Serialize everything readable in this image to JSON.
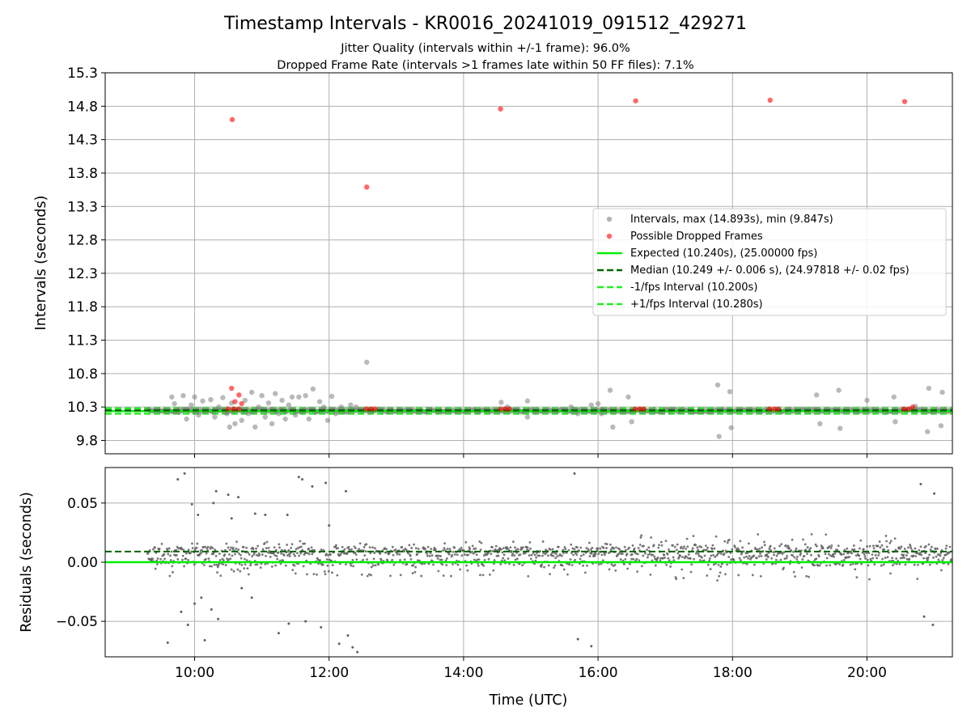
{
  "chart_data": [
    {
      "type": "scatter",
      "title": "Timestamp Intervals - KR0016_20241019_091512_429271",
      "subtitle_lines": [
        "Jitter Quality (intervals within +/-1 frame): 96.0%",
        "Dropped Frame Rate (intervals >1 frames late within 50 FF files): 7.1%"
      ],
      "xlabel": "",
      "ylabel": "Intervals (seconds)",
      "xlim_hours": [
        8.67,
        21.27
      ],
      "ylim": [
        9.6,
        15.3
      ],
      "yticks": [
        9.8,
        10.3,
        10.8,
        11.3,
        11.8,
        12.3,
        12.8,
        13.3,
        13.8,
        14.3,
        14.8,
        15.3
      ],
      "ytick_labels": [
        "9.8",
        "10.3",
        "10.8",
        "11.3",
        "11.8",
        "12.3",
        "12.8",
        "13.3",
        "13.8",
        "14.3",
        "14.8",
        "15.3"
      ],
      "grid": true,
      "legend_position": "center-right",
      "colors": {
        "intervals": "#808080",
        "dropped": "#ff0000",
        "expected": "#00ee00",
        "median": "#006400",
        "bounds": "#22ee22"
      },
      "series": [
        {
          "name": "Intervals, max (14.893s), min (9.847s)",
          "kind": "scatter",
          "points": [
            [
              9.66,
              10.45
            ],
            [
              9.7,
              10.35
            ],
            [
              9.76,
              10.22
            ],
            [
              9.83,
              10.47
            ],
            [
              9.88,
              10.12
            ],
            [
              9.95,
              10.33
            ],
            [
              10.0,
              10.45
            ],
            [
              10.06,
              10.18
            ],
            [
              10.12,
              10.39
            ],
            [
              10.18,
              10.25
            ],
            [
              10.24,
              10.41
            ],
            [
              10.3,
              10.15
            ],
            [
              10.36,
              10.3
            ],
            [
              10.42,
              10.44
            ],
            [
              10.48,
              10.2
            ],
            [
              10.52,
              10.0
            ],
            [
              10.55,
              10.36
            ],
            [
              10.6,
              10.05
            ],
            [
              10.7,
              10.1
            ],
            [
              10.75,
              10.4
            ],
            [
              10.8,
              10.2
            ],
            [
              10.85,
              10.52
            ],
            [
              10.9,
              10.0
            ],
            [
              10.95,
              10.3
            ],
            [
              11.0,
              10.47
            ],
            [
              11.05,
              10.15
            ],
            [
              11.1,
              10.36
            ],
            [
              11.15,
              10.05
            ],
            [
              11.2,
              10.5
            ],
            [
              11.25,
              10.2
            ],
            [
              11.3,
              10.4
            ],
            [
              11.35,
              10.12
            ],
            [
              11.4,
              10.33
            ],
            [
              11.45,
              10.45
            ],
            [
              11.5,
              10.18
            ],
            [
              11.55,
              10.45
            ],
            [
              11.6,
              10.25
            ],
            [
              11.65,
              10.47
            ],
            [
              11.7,
              10.12
            ],
            [
              11.76,
              10.57
            ],
            [
              11.8,
              10.22
            ],
            [
              11.86,
              10.38
            ],
            [
              11.92,
              10.3
            ],
            [
              11.98,
              10.1
            ],
            [
              12.04,
              10.46
            ],
            [
              12.1,
              10.2
            ],
            [
              12.18,
              10.3
            ],
            [
              12.26,
              10.22
            ],
            [
              12.32,
              10.33
            ],
            [
              12.4,
              10.3
            ],
            [
              12.56,
              10.97
            ],
            [
              14.56,
              10.37
            ],
            [
              14.65,
              10.3
            ],
            [
              14.95,
              10.39
            ],
            [
              14.95,
              10.15
            ],
            [
              15.6,
              10.3
            ],
            [
              15.7,
              10.2
            ],
            [
              15.9,
              10.33
            ],
            [
              16.0,
              10.35
            ],
            [
              16.05,
              10.2
            ],
            [
              16.18,
              10.55
            ],
            [
              16.22,
              10.0
            ],
            [
              16.45,
              10.45
            ],
            [
              16.5,
              10.08
            ],
            [
              17.78,
              10.63
            ],
            [
              17.8,
              9.86
            ],
            [
              17.96,
              10.53
            ],
            [
              17.98,
              9.99
            ],
            [
              19.25,
              10.48
            ],
            [
              19.3,
              10.05
            ],
            [
              19.58,
              10.55
            ],
            [
              19.6,
              9.98
            ],
            [
              20.0,
              10.4
            ],
            [
              20.4,
              10.45
            ],
            [
              20.42,
              10.08
            ],
            [
              20.72,
              10.31
            ],
            [
              20.9,
              9.93
            ],
            [
              20.92,
              10.58
            ],
            [
              21.1,
              10.02
            ],
            [
              21.12,
              10.52
            ]
          ]
        },
        {
          "name": "Possible Dropped Frames",
          "kind": "scatter",
          "points": [
            [
              10.56,
              14.6
            ],
            [
              12.56,
              13.59
            ],
            [
              14.55,
              14.76
            ],
            [
              16.56,
              14.88
            ],
            [
              18.56,
              14.89
            ],
            [
              20.56,
              14.87
            ],
            [
              10.55,
              10.58
            ],
            [
              10.6,
              10.38
            ],
            [
              10.66,
              10.48
            ],
            [
              10.7,
              10.35
            ],
            [
              10.5,
              10.27
            ],
            [
              10.58,
              10.27
            ],
            [
              10.66,
              10.27
            ],
            [
              12.55,
              10.27
            ],
            [
              12.62,
              10.27
            ],
            [
              12.68,
              10.27
            ],
            [
              14.55,
              10.27
            ],
            [
              14.62,
              10.27
            ],
            [
              14.68,
              10.27
            ],
            [
              16.55,
              10.27
            ],
            [
              16.62,
              10.27
            ],
            [
              16.68,
              10.27
            ],
            [
              18.55,
              10.27
            ],
            [
              18.62,
              10.27
            ],
            [
              18.68,
              10.27
            ],
            [
              20.55,
              10.27
            ],
            [
              20.62,
              10.27
            ],
            [
              20.68,
              10.3
            ]
          ]
        },
        {
          "name": "Expected (10.240s), (25.00000 fps)",
          "kind": "hline",
          "y": 10.24,
          "style": "solid"
        },
        {
          "name": "Median (10.249 +/- 0.006 s), (24.97818 +/- 0.02 fps)",
          "kind": "hline",
          "y": 10.249,
          "style": "dashed"
        },
        {
          "name": "-1/fps Interval (10.200s)",
          "kind": "hline",
          "y": 10.2,
          "style": "dashed"
        },
        {
          "name": "+1/fps Interval (10.280s)",
          "kind": "hline",
          "y": 10.28,
          "style": "dashed"
        }
      ]
    },
    {
      "type": "scatter",
      "title": "",
      "xlabel": "Time (UTC)",
      "ylabel": "Residuals (seconds)",
      "xlim_hours": [
        8.67,
        21.27
      ],
      "ylim": [
        -0.08,
        0.08
      ],
      "yticks": [
        -0.05,
        0.0,
        0.05
      ],
      "ytick_labels": [
        "−0.05",
        "0.00",
        "0.05"
      ],
      "xticks_hours": [
        10,
        12,
        14,
        16,
        18,
        20
      ],
      "xtick_labels": [
        "10:00",
        "12:00",
        "14:00",
        "16:00",
        "18:00",
        "20:00"
      ],
      "grid": true,
      "residual_density": {
        "start_hour": 9.3,
        "end_hour": 21.27,
        "typical_range": [
          -0.01,
          0.025
        ],
        "center": 0.009
      },
      "outliers": [
        [
          9.6,
          -0.068
        ],
        [
          9.75,
          0.07
        ],
        [
          9.8,
          -0.042
        ],
        [
          9.85,
          0.075
        ],
        [
          9.9,
          -0.053
        ],
        [
          9.96,
          0.049
        ],
        [
          10.0,
          -0.035
        ],
        [
          10.05,
          0.04
        ],
        [
          10.1,
          -0.03
        ],
        [
          10.15,
          -0.066
        ],
        [
          10.25,
          -0.04
        ],
        [
          10.28,
          0.05
        ],
        [
          10.32,
          0.06
        ],
        [
          10.35,
          -0.048
        ],
        [
          10.5,
          0.057
        ],
        [
          10.55,
          0.037
        ],
        [
          10.65,
          0.055
        ],
        [
          10.7,
          -0.022
        ],
        [
          10.85,
          -0.03
        ],
        [
          10.9,
          0.041
        ],
        [
          11.05,
          0.04
        ],
        [
          11.25,
          -0.06
        ],
        [
          11.38,
          0.04
        ],
        [
          11.4,
          -0.052
        ],
        [
          11.55,
          0.072
        ],
        [
          11.6,
          0.07
        ],
        [
          11.65,
          -0.05
        ],
        [
          11.75,
          0.064
        ],
        [
          11.88,
          -0.055
        ],
        [
          11.95,
          0.067
        ],
        [
          12.0,
          0.031
        ],
        [
          12.15,
          -0.069
        ],
        [
          12.25,
          0.06
        ],
        [
          12.28,
          -0.062
        ],
        [
          12.35,
          -0.072
        ],
        [
          12.42,
          -0.076
        ],
        [
          15.65,
          0.075
        ],
        [
          15.7,
          -0.065
        ],
        [
          15.9,
          -0.071
        ],
        [
          20.8,
          0.066
        ],
        [
          20.85,
          -0.046
        ],
        [
          20.98,
          -0.053
        ],
        [
          21.0,
          0.058
        ]
      ],
      "series": [
        {
          "name": "",
          "kind": "hline",
          "y": 0.0,
          "style": "solid"
        },
        {
          "name": "",
          "kind": "hline",
          "y": 0.009,
          "style": "dashed"
        }
      ]
    }
  ]
}
